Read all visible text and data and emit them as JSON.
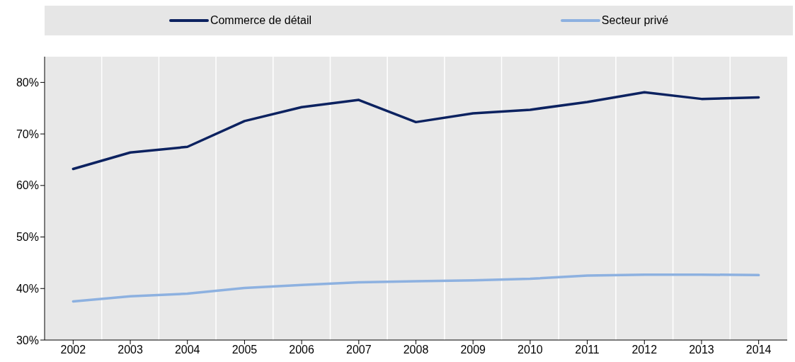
{
  "chart_data": {
    "type": "line",
    "categories": [
      "2002",
      "2003",
      "2004",
      "2005",
      "2006",
      "2007",
      "2008",
      "2009",
      "2010",
      "2011",
      "2012",
      "2013",
      "2014"
    ],
    "series": [
      {
        "name": "Commerce de détail",
        "color": "#0c2260",
        "values": [
          63.2,
          66.4,
          67.5,
          72.5,
          75.2,
          76.6,
          72.3,
          74.0,
          74.7,
          76.2,
          78.1,
          76.8,
          77.1
        ]
      },
      {
        "name": "Secteur privé",
        "color": "#8db1e0",
        "values": [
          37.5,
          38.5,
          39.0,
          40.1,
          40.7,
          41.2,
          41.4,
          41.6,
          41.9,
          42.5,
          42.7,
          42.7,
          42.6
        ]
      }
    ],
    "ylim": [
      30,
      85
    ],
    "yticks": [
      {
        "value": 30,
        "label": "30%"
      },
      {
        "value": 40,
        "label": "40%"
      },
      {
        "value": 50,
        "label": "50%"
      },
      {
        "value": 60,
        "label": "60%"
      },
      {
        "value": 70,
        "label": "70%"
      },
      {
        "value": 80,
        "label": "80%"
      }
    ],
    "grid": "x",
    "legend": "top",
    "marker": "none",
    "line_style": "solid"
  }
}
